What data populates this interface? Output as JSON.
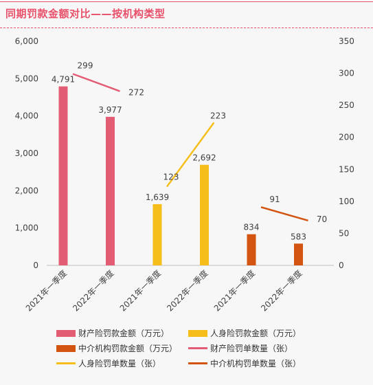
{
  "title": "同期罚款金额对比——按机构类型",
  "colors": {
    "property": "#e25c74",
    "life": "#f6be1a",
    "intermediary": "#d35410",
    "title": "#e8506a"
  },
  "chart_data": {
    "type": "bar",
    "categories": [
      "2021年一季度",
      "2022年一季度",
      "2021年一季度",
      "2022年一季度",
      "2021年一季度",
      "2022年一季度"
    ],
    "left_axis": {
      "ylim": [
        0,
        6000
      ],
      "ticks": [
        "0",
        "1,000",
        "2,000",
        "3,000",
        "4,000",
        "5,000",
        "6,000"
      ]
    },
    "right_axis": {
      "ylim": [
        0,
        350
      ],
      "ticks": [
        "0",
        "50",
        "100",
        "150",
        "200",
        "250",
        "300",
        "350"
      ]
    },
    "bar_series": [
      {
        "name": "财产险罚款金额（万元）",
        "color": "#e25c74",
        "category_index": [
          0,
          1
        ],
        "values": [
          4791,
          3977
        ],
        "labels": [
          "4,791",
          "3,977"
        ]
      },
      {
        "name": "人身险罚款金额（万元）",
        "color": "#f6be1a",
        "category_index": [
          2,
          3
        ],
        "values": [
          1639,
          2692
        ],
        "labels": [
          "1,639",
          "2,692"
        ]
      },
      {
        "name": "中介机构罚款金额（万元）",
        "color": "#d35410",
        "category_index": [
          4,
          5
        ],
        "values": [
          834,
          583
        ],
        "labels": [
          "834",
          "583"
        ]
      }
    ],
    "line_series": [
      {
        "name": "财产险罚单数量（张）",
        "color": "#e25c74",
        "category_index": [
          0,
          1
        ],
        "values": [
          299,
          272
        ],
        "labels": [
          "299",
          "272"
        ]
      },
      {
        "name": "人身险罚单数量（张）",
        "color": "#f6be1a",
        "category_index": [
          2,
          3
        ],
        "values": [
          123,
          223
        ],
        "labels": [
          "123",
          "223"
        ]
      },
      {
        "name": "中介机构罚单数量（张）",
        "color": "#d35410",
        "category_index": [
          4,
          5
        ],
        "values": [
          91,
          70
        ],
        "labels": [
          "91",
          "70"
        ]
      }
    ],
    "legend": [
      {
        "label": "财产险罚款金额（万元）",
        "kind": "bar",
        "color": "#e25c74"
      },
      {
        "label": "人身险罚款金额（万元）",
        "kind": "bar",
        "color": "#f6be1a"
      },
      {
        "label": "中介机构罚款金额（万元）",
        "kind": "bar",
        "color": "#d35410"
      },
      {
        "label": "财产险罚单数量（张）",
        "kind": "line",
        "color": "#e25c74"
      },
      {
        "label": "人身险罚单数量（张）",
        "kind": "line",
        "color": "#f6be1a"
      },
      {
        "label": "中介机构罚单数量（张）",
        "kind": "line",
        "color": "#d35410"
      }
    ],
    "legend_position": "bottom",
    "grid": false
  }
}
